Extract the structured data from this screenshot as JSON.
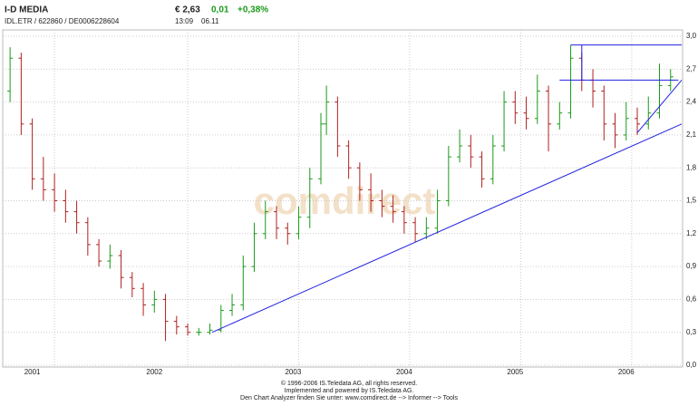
{
  "header": {
    "name": "I-D MEDIA",
    "ids": "IDL.ETR / 622860 / DE0006228604",
    "price": "€ 2,63",
    "change": "0,01",
    "change_pct": "+0,38%",
    "time": "13:09",
    "date": "06.11"
  },
  "chart_data": {
    "type": "ohlc",
    "watermark": "comdirect",
    "footer": [
      "© 1996-2006 IS.Teledata AG, all rights reserved.",
      "Implemented and powered by IS.Teledata AG.",
      "Den Chart Analyzer finden Sie unter: www.comdirect.de --> Informer --> Tools"
    ],
    "x": [
      2000.9,
      2001.0,
      2001.1,
      2001.2,
      2001.3,
      2001.4,
      2001.5,
      2001.6,
      2001.7,
      2001.8,
      2001.9,
      2002.0,
      2002.1,
      2002.2,
      2002.3,
      2002.4,
      2002.5,
      2002.6,
      2002.7,
      2002.8,
      2002.9,
      2003.0,
      2003.1,
      2003.2,
      2003.3,
      2003.4,
      2003.5,
      2003.6,
      2003.7,
      2003.75,
      2003.85,
      2003.95,
      2004.05,
      2004.15,
      2004.25,
      2004.35,
      2004.45,
      2004.55,
      2004.65,
      2004.75,
      2004.85,
      2004.95,
      2005.05,
      2005.15,
      2005.25,
      2005.35,
      2005.45,
      2005.55,
      2005.65,
      2005.75,
      2005.85,
      2005.95,
      2006.05,
      2006.15,
      2006.25,
      2006.35,
      2006.45,
      2006.55,
      2006.65,
      2006.75,
      2006.85
    ],
    "open": [
      2.5,
      2.8,
      2.2,
      1.7,
      1.6,
      1.5,
      1.4,
      1.3,
      1.1,
      0.95,
      1.0,
      0.8,
      0.7,
      0.55,
      0.6,
      0.4,
      0.35,
      0.3,
      0.3,
      0.32,
      0.5,
      0.55,
      0.9,
      1.2,
      1.4,
      1.25,
      1.2,
      1.35,
      1.7,
      2.2,
      2.4,
      2.0,
      1.8,
      1.6,
      1.5,
      1.45,
      1.4,
      1.3,
      1.2,
      1.25,
      1.5,
      1.9,
      2.0,
      1.9,
      1.7,
      2.0,
      2.4,
      2.3,
      2.25,
      2.5,
      2.2,
      2.3,
      2.8,
      2.6,
      2.5,
      2.2,
      2.1,
      2.25,
      2.2,
      2.3,
      2.55
    ],
    "high": [
      2.9,
      2.85,
      2.25,
      1.9,
      1.75,
      1.6,
      1.5,
      1.35,
      1.15,
      1.1,
      1.05,
      0.85,
      0.75,
      0.68,
      0.65,
      0.45,
      0.38,
      0.34,
      0.38,
      0.55,
      0.65,
      1.0,
      1.3,
      1.5,
      1.45,
      1.3,
      1.45,
      1.8,
      2.3,
      2.55,
      2.45,
      2.05,
      1.85,
      1.75,
      1.6,
      1.55,
      1.45,
      1.35,
      1.35,
      1.6,
      2.0,
      2.15,
      2.1,
      1.95,
      2.1,
      2.5,
      2.5,
      2.45,
      2.65,
      2.55,
      2.4,
      2.92,
      2.85,
      2.7,
      2.55,
      2.3,
      2.4,
      2.35,
      2.45,
      2.75,
      2.7
    ],
    "low": [
      2.4,
      2.1,
      1.6,
      1.5,
      1.4,
      1.3,
      1.2,
      1.0,
      0.9,
      0.88,
      0.7,
      0.62,
      0.45,
      0.48,
      0.22,
      0.28,
      0.27,
      0.27,
      0.28,
      0.3,
      0.45,
      0.5,
      0.85,
      1.15,
      1.15,
      1.1,
      1.15,
      1.25,
      1.65,
      2.1,
      1.9,
      1.7,
      1.5,
      1.4,
      1.35,
      1.3,
      1.2,
      1.12,
      1.15,
      1.2,
      1.45,
      1.85,
      1.8,
      1.62,
      1.65,
      1.95,
      2.2,
      2.15,
      2.2,
      1.95,
      2.15,
      2.25,
      2.5,
      2.35,
      2.05,
      1.98,
      2.05,
      2.1,
      2.15,
      2.25,
      2.5
    ],
    "close": [
      2.8,
      2.2,
      1.7,
      1.6,
      1.5,
      1.4,
      1.3,
      1.1,
      0.95,
      1.0,
      0.8,
      0.7,
      0.55,
      0.6,
      0.4,
      0.35,
      0.3,
      0.3,
      0.32,
      0.5,
      0.55,
      0.9,
      1.2,
      1.4,
      1.25,
      1.2,
      1.35,
      1.7,
      2.2,
      2.4,
      2.0,
      1.8,
      1.6,
      1.5,
      1.45,
      1.4,
      1.3,
      1.2,
      1.25,
      1.5,
      1.9,
      2.0,
      1.9,
      1.7,
      2.0,
      2.4,
      2.3,
      2.25,
      2.5,
      2.2,
      2.3,
      2.8,
      2.6,
      2.5,
      2.2,
      2.1,
      2.25,
      2.2,
      2.3,
      2.55,
      2.63
    ],
    "up_color": "#1a9a1a",
    "down_color": "#b02020",
    "line_color": "#2020e0",
    "trendlines": [
      {
        "x": [
          2002.72,
          2006.95
        ],
        "y": [
          0.3,
          2.2
        ]
      },
      {
        "x": [
          2005.95,
          2006.95
        ],
        "y": [
          2.92,
          2.92
        ]
      },
      {
        "x": [
          2005.85,
          2006.92
        ],
        "y": [
          2.6,
          2.6
        ]
      },
      {
        "x": [
          2006.55,
          2006.95
        ],
        "y": [
          2.12,
          2.6
        ]
      },
      {
        "x": [
          2006.05,
          2006.05
        ],
        "y": [
          2.92,
          2.6
        ]
      }
    ],
    "xlim": [
      2000.85,
      2006.95
    ],
    "ylim": [
      0,
      3
    ],
    "xticks": [
      {
        "value": 2001.1,
        "label": "2001"
      },
      {
        "value": 2002.2,
        "label": "2002"
      },
      {
        "value": 2003.45,
        "label": "2003"
      },
      {
        "value": 2004.45,
        "label": "2004"
      },
      {
        "value": 2005.45,
        "label": "2005"
      },
      {
        "value": 2006.45,
        "label": "2006"
      }
    ],
    "xgrid": [
      2001.3,
      2002.5,
      2003.5,
      2004.5,
      2005.5,
      2006.5
    ],
    "yticks": [
      {
        "value": 0,
        "label": "0,0"
      },
      {
        "value": 0.3,
        "label": "0,3"
      },
      {
        "value": 0.6,
        "label": "0,6"
      },
      {
        "value": 0.9,
        "label": "0,9"
      },
      {
        "value": 1.2,
        "label": "1,2"
      },
      {
        "value": 1.5,
        "label": "1,5"
      },
      {
        "value": 1.8,
        "label": "1,8"
      },
      {
        "value": 2.1,
        "label": "2,1"
      },
      {
        "value": 2.4,
        "label": "2,4"
      },
      {
        "value": 2.7,
        "label": "2,7"
      },
      {
        "value": 3,
        "label": "3,0"
      }
    ],
    "grid": true
  }
}
